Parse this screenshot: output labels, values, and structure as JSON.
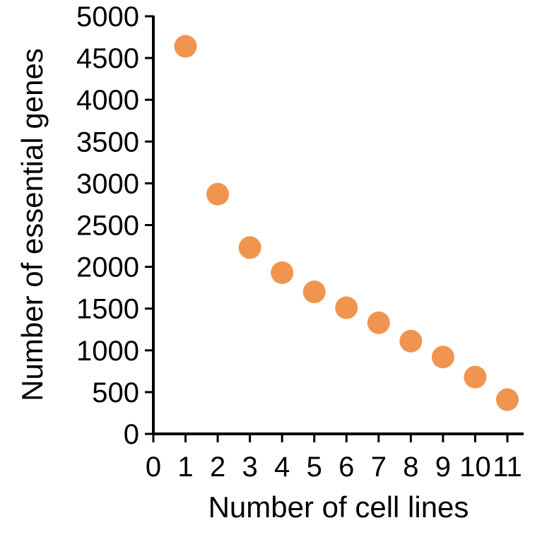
{
  "chart_data": {
    "type": "scatter",
    "title": "",
    "xlabel": "Number of cell lines",
    "ylabel": "Number of essential genes",
    "xlim": [
      0,
      11
    ],
    "ylim": [
      0,
      5000
    ],
    "x_ticks": [
      0,
      1,
      2,
      3,
      4,
      5,
      6,
      7,
      8,
      9,
      10,
      11
    ],
    "y_ticks": [
      0,
      500,
      1000,
      1500,
      2000,
      2500,
      3000,
      3500,
      4000,
      4500,
      5000
    ],
    "grid": false,
    "legend": "none",
    "series": [
      {
        "color": "#F0954F",
        "x": [
          1,
          2,
          3,
          4,
          5,
          6,
          7,
          8,
          9,
          10,
          11
        ],
        "y": [
          4640,
          2870,
          2230,
          1930,
          1700,
          1510,
          1330,
          1110,
          920,
          680,
          410
        ]
      }
    ]
  }
}
